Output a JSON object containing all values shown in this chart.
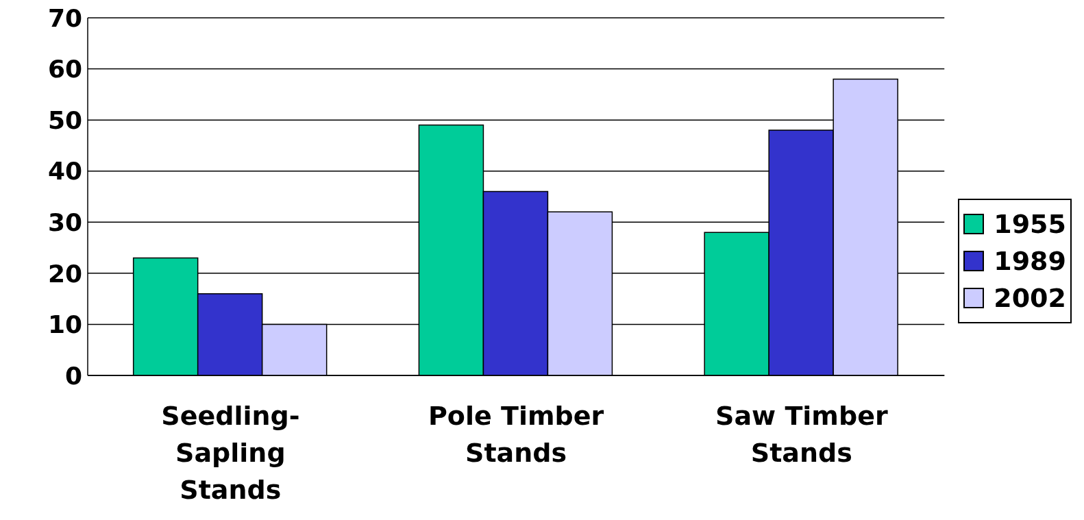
{
  "chart_data": {
    "type": "bar",
    "categories": [
      "Seedling-Sapling Stands",
      "Pole Timber Stands",
      "Saw Timber Stands"
    ],
    "series": [
      {
        "name": "1955",
        "color": "#00cc99",
        "values": [
          23,
          49,
          28
        ]
      },
      {
        "name": "1989",
        "color": "#3333cc",
        "values": [
          16,
          36,
          48
        ]
      },
      {
        "name": "2002",
        "color": "#ccccff",
        "values": [
          10,
          32,
          58
        ]
      }
    ],
    "ylim": [
      0,
      70
    ],
    "yticks": [
      0,
      10,
      20,
      30,
      40,
      50,
      60,
      70
    ],
    "grid": "y",
    "legend": "right"
  }
}
